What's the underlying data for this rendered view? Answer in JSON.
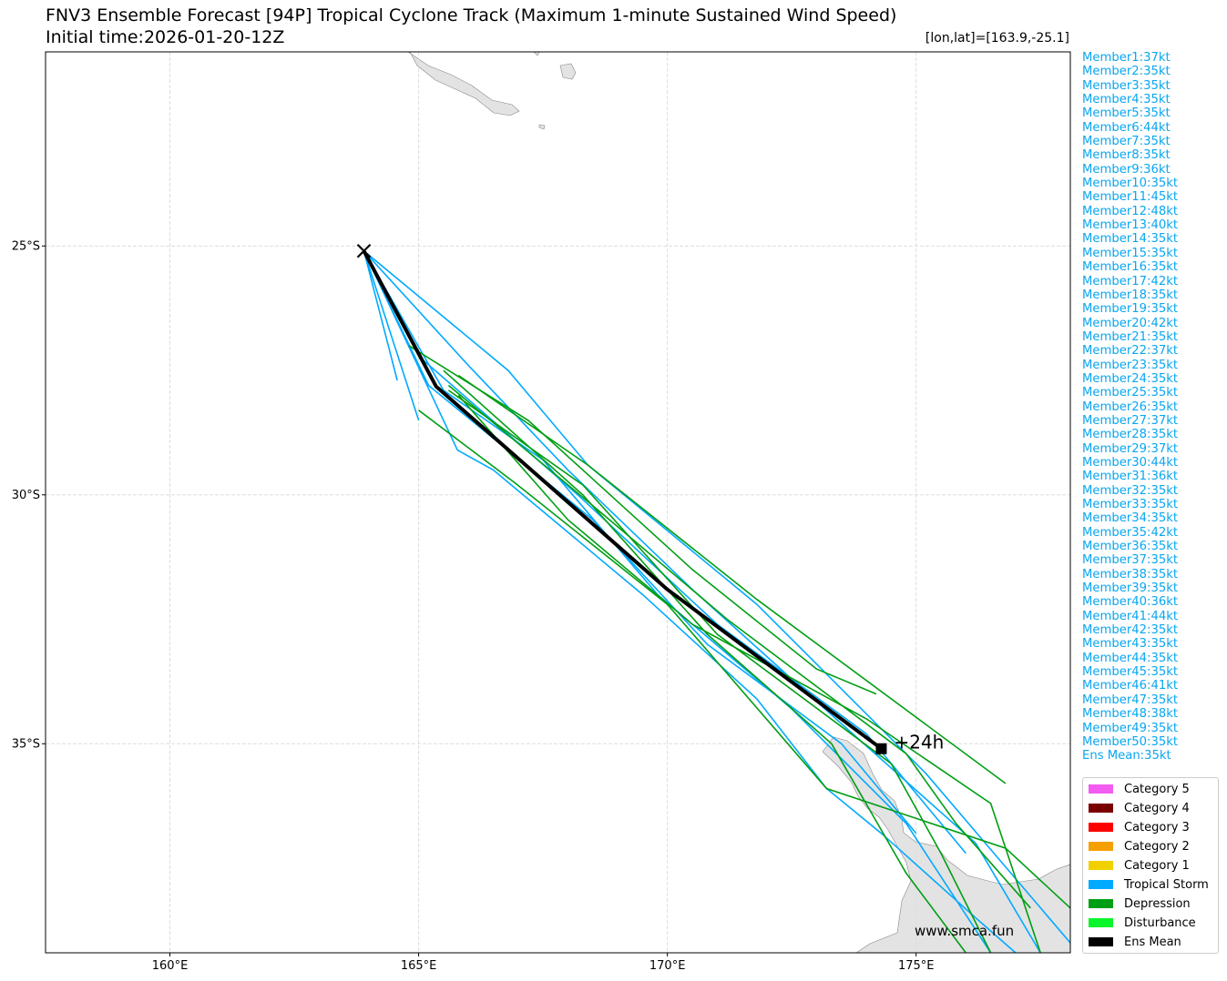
{
  "title": "FNV3 Ensemble Forecast [94P] Tropical Cyclone Track (Maximum 1-minute Sustained Wind Speed)",
  "subtitle": "Initial time:2026-01-20-12Z",
  "coord_readout": "[lon,lat]=[163.9,-25.1]",
  "watermark": "www.smca.fun",
  "lead_label": "+24h",
  "map": {
    "lon_range": [
      157.5,
      178.1
    ],
    "lat_range": [
      -39.2,
      -21.1
    ],
    "lon_ticks": [
      {
        "v": 160,
        "label": "160°E"
      },
      {
        "v": 165,
        "label": "165°E"
      },
      {
        "v": 170,
        "label": "170°E"
      },
      {
        "v": 175,
        "label": "175°E"
      }
    ],
    "lat_ticks": [
      {
        "v": -25,
        "label": "25°S"
      },
      {
        "v": -30,
        "label": "30°S"
      },
      {
        "v": -35,
        "label": "35°S"
      }
    ],
    "grid": true,
    "land_color": "#e3e3e3"
  },
  "members": [
    "Member1:37kt",
    "Member2:35kt",
    "Member3:35kt",
    "Member4:35kt",
    "Member5:35kt",
    "Member6:44kt",
    "Member7:35kt",
    "Member8:35kt",
    "Member9:36kt",
    "Member10:35kt",
    "Member11:45kt",
    "Member12:48kt",
    "Member13:40kt",
    "Member14:35kt",
    "Member15:35kt",
    "Member16:35kt",
    "Member17:42kt",
    "Member18:35kt",
    "Member19:35kt",
    "Member20:42kt",
    "Member21:35kt",
    "Member22:37kt",
    "Member23:35kt",
    "Member24:35kt",
    "Member25:35kt",
    "Member26:35kt",
    "Member27:37kt",
    "Member28:35kt",
    "Member29:37kt",
    "Member30:44kt",
    "Member31:36kt",
    "Member32:35kt",
    "Member33:35kt",
    "Member34:35kt",
    "Member35:42kt",
    "Member36:35kt",
    "Member37:35kt",
    "Member38:35kt",
    "Member39:35kt",
    "Member40:36kt",
    "Member41:44kt",
    "Member42:35kt",
    "Member43:35kt",
    "Member44:35kt",
    "Member45:35kt",
    "Member46:41kt",
    "Member47:35kt",
    "Member48:38kt",
    "Member49:35kt",
    "Member50:35kt",
    "Ens Mean:35kt"
  ],
  "legend": [
    {
      "label": "Category 5",
      "color": "#f25cf0"
    },
    {
      "label": "Category 4",
      "color": "#7a0000"
    },
    {
      "label": "Category 3",
      "color": "#ff0000"
    },
    {
      "label": "Category 2",
      "color": "#f5a000"
    },
    {
      "label": "Category 1",
      "color": "#f2d000"
    },
    {
      "label": "Tropical Storm",
      "color": "#00aaff"
    },
    {
      "label": "Depression",
      "color": "#009e13"
    },
    {
      "label": "Disturbance",
      "color": "#0af52a"
    },
    {
      "label": "Ens Mean",
      "color": "#000000"
    }
  ],
  "start": [
    163.9,
    -25.1
  ],
  "ens_mean": [
    [
      163.9,
      -25.1
    ],
    [
      165.35,
      -27.82
    ],
    [
      170.0,
      -31.9
    ],
    [
      174.3,
      -35.1
    ]
  ],
  "tracks": [
    {
      "cat": "Tropical Storm",
      "pts": [
        [
          163.9,
          -25.1
        ],
        [
          164.57,
          -27.7
        ]
      ]
    },
    {
      "cat": "Tropical Storm",
      "pts": [
        [
          163.9,
          -25.1
        ],
        [
          165.0,
          -28.5
        ]
      ]
    },
    {
      "cat": "Tropical Storm",
      "pts": [
        [
          163.9,
          -25.1
        ],
        [
          165.78,
          -29.1
        ],
        [
          166.5,
          -29.5
        ],
        [
          169.5,
          -32.0
        ],
        [
          171.8,
          -34.1
        ],
        [
          173.2,
          -35.9
        ],
        [
          174.3,
          -36.8
        ],
        [
          176.2,
          -38.5
        ],
        [
          177.0,
          -39.2
        ]
      ]
    },
    {
      "cat": "Tropical Storm",
      "pts": [
        [
          163.9,
          -25.1
        ],
        [
          166.8,
          -27.5
        ],
        [
          168.4,
          -29.4
        ],
        [
          171.8,
          -32.2
        ],
        [
          175.2,
          -35.6
        ],
        [
          178.1,
          -39.0
        ]
      ]
    },
    {
      "cat": "Tropical Storm",
      "pts": [
        [
          163.9,
          -25.1
        ],
        [
          166.0,
          -27.4
        ],
        [
          168.0,
          -29.5
        ],
        [
          170.5,
          -31.9
        ],
        [
          173.5,
          -34.6
        ],
        [
          176.2,
          -37.0
        ],
        [
          177.5,
          -39.2
        ]
      ]
    },
    {
      "cat": "Tropical Storm",
      "pts": [
        [
          163.9,
          -25.1
        ],
        [
          165.5,
          -27.9
        ],
        [
          167.5,
          -29.3
        ],
        [
          169.8,
          -32.0
        ],
        [
          172.5,
          -34.3
        ],
        [
          174.8,
          -36.6
        ],
        [
          176.5,
          -39.2
        ]
      ]
    },
    {
      "cat": "Tropical Storm",
      "pts": [
        [
          163.9,
          -25.1
        ],
        [
          165.2,
          -27.8
        ],
        [
          168.5,
          -30.5
        ],
        [
          170.8,
          -33.0
        ],
        [
          173.5,
          -35.0
        ],
        [
          175.0,
          -36.8
        ]
      ]
    },
    {
      "cat": "Tropical Storm",
      "pts": [
        [
          163.9,
          -25.1
        ],
        [
          165.1,
          -27.3
        ],
        [
          168.2,
          -30.0
        ],
        [
          171.0,
          -32.6
        ],
        [
          174.0,
          -34.8
        ],
        [
          176.0,
          -37.2
        ]
      ]
    },
    {
      "cat": "Depression",
      "pts": [
        [
          165.0,
          -28.3
        ],
        [
          166.95,
          -29.77
        ],
        [
          170.0,
          -32.2
        ],
        [
          173.2,
          -35.9
        ],
        [
          176.8,
          -37.1
        ],
        [
          178.1,
          -38.3
        ]
      ]
    },
    {
      "cat": "Depression",
      "pts": [
        [
          165.8,
          -27.6
        ],
        [
          168.4,
          -29.4
        ],
        [
          171.8,
          -32.1
        ],
        [
          176.8,
          -35.8
        ]
      ]
    },
    {
      "cat": "Depression",
      "pts": [
        [
          165.8,
          -28.0
        ],
        [
          168.0,
          -30.5
        ],
        [
          170.5,
          -32.6
        ],
        [
          174.0,
          -34.5
        ],
        [
          176.5,
          -36.2
        ],
        [
          177.5,
          -39.2
        ]
      ]
    },
    {
      "cat": "Depression",
      "pts": [
        [
          165.6,
          -27.9
        ],
        [
          168.3,
          -29.8
        ],
        [
          171.0,
          -32.8
        ],
        [
          174.5,
          -35.4
        ],
        [
          175.5,
          -37.2
        ],
        [
          176.5,
          -39.2
        ]
      ]
    },
    {
      "cat": "Depression",
      "pts": [
        [
          164.8,
          -27.0
        ],
        [
          167.2,
          -28.5
        ],
        [
          170.5,
          -31.5
        ],
        [
          173.0,
          -33.5
        ],
        [
          174.2,
          -34.0
        ]
      ]
    },
    {
      "cat": "Depression",
      "pts": [
        [
          165.5,
          -27.5
        ],
        [
          168.3,
          -30.0
        ],
        [
          170.8,
          -32.8
        ],
        [
          173.3,
          -35.0
        ],
        [
          174.8,
          -37.6
        ],
        [
          176.0,
          -39.2
        ]
      ]
    },
    {
      "cat": "Depression",
      "pts": [
        [
          165.6,
          -27.8
        ],
        [
          168.6,
          -30.3
        ],
        [
          171.2,
          -32.5
        ],
        [
          174.8,
          -35.2
        ],
        [
          175.8,
          -36.6
        ],
        [
          177.3,
          -38.3
        ]
      ]
    }
  ]
}
